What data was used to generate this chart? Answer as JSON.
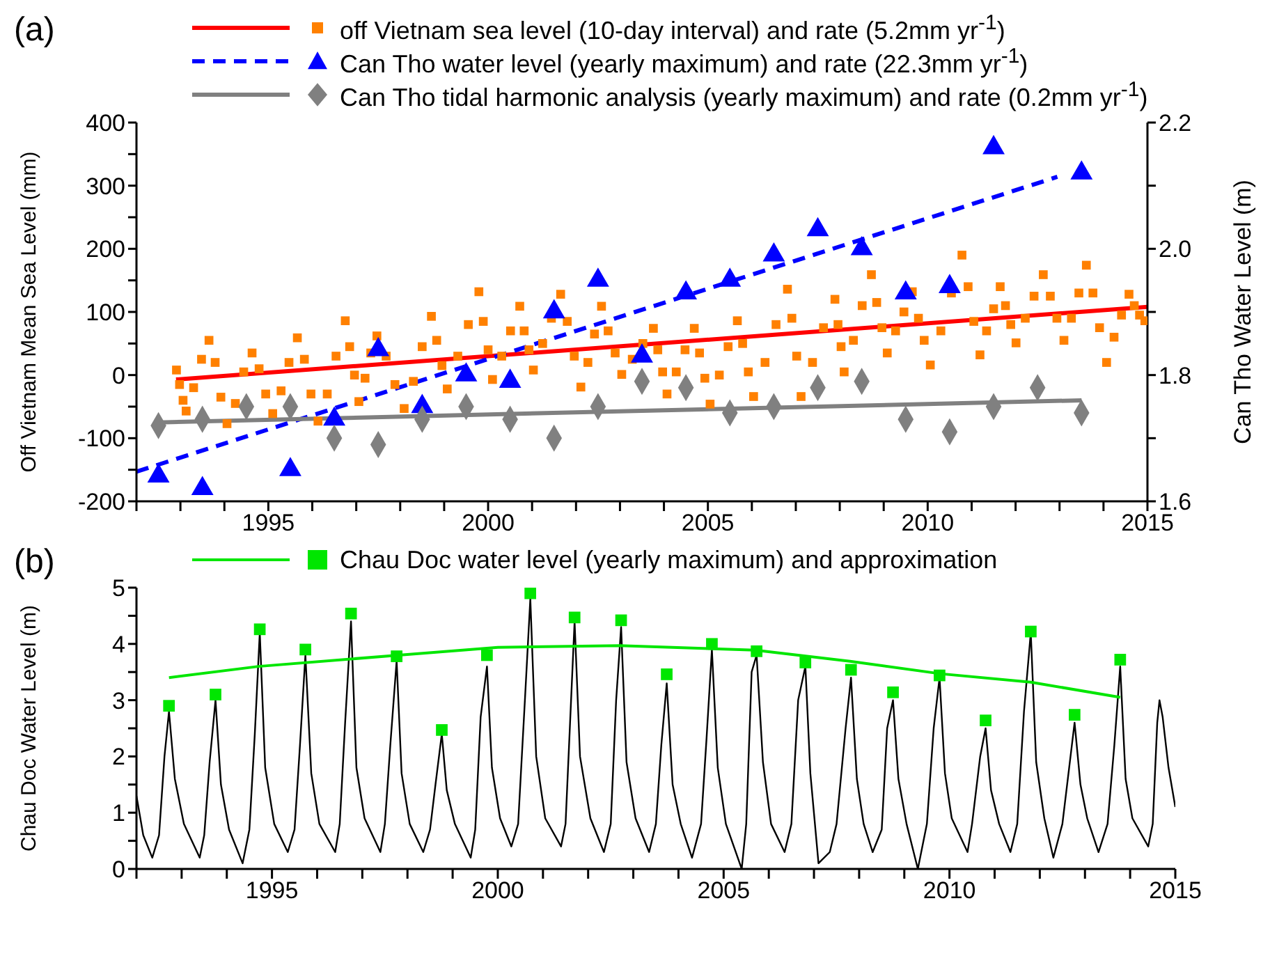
{
  "chart_data": [
    {
      "type": "scatter",
      "title": "(a)",
      "ylabel": "Off Vietnam Mean Sea Level (mm)",
      "y2label": "Can Tho Water Level (m)",
      "legend": "top",
      "grid": false,
      "xlim": [
        1992,
        2015
      ],
      "xticks": [
        {
          "value": 1992,
          "label": null
        },
        {
          "value": 1993,
          "label": null
        },
        {
          "value": 1994,
          "label": null
        },
        1995,
        {
          "value": 1996,
          "label": null
        },
        {
          "value": 1997,
          "label": null
        },
        {
          "value": 1998,
          "label": null
        },
        {
          "value": 1999,
          "label": null
        },
        2000,
        {
          "value": 2001,
          "label": null
        },
        {
          "value": 2002,
          "label": null
        },
        {
          "value": 2003,
          "label": null
        },
        {
          "value": 2004,
          "label": null
        },
        2005,
        {
          "value": 2006,
          "label": null
        },
        {
          "value": 2007,
          "label": null
        },
        {
          "value": 2008,
          "label": null
        },
        {
          "value": 2009,
          "label": null
        },
        2010,
        {
          "value": 2011,
          "label": null
        },
        {
          "value": 2012,
          "label": null
        },
        {
          "value": 2013,
          "label": null
        },
        {
          "value": 2014,
          "label": null
        },
        2015
      ],
      "ylim": [
        -200,
        400
      ],
      "yticks": [
        -200,
        {
          "value": -150,
          "label": null
        },
        -100,
        {
          "value": -50,
          "label": null
        },
        0,
        {
          "value": 50,
          "label": null
        },
        100,
        {
          "value": 150,
          "label": null
        },
        200,
        {
          "value": 250,
          "label": null
        },
        300,
        {
          "value": 350,
          "label": null
        },
        400
      ],
      "y2lim": [
        1.6,
        2.2
      ],
      "y2ticks": [
        1.6,
        {
          "value": 1.7,
          "label": null
        },
        1.8,
        {
          "value": 1.9,
          "label": null
        },
        {
          "value": 2,
          "label": "2.0"
        },
        {
          "value": 2.1,
          "label": null
        },
        2.2
      ],
      "series": [
        {
          "name": "off Vietnam sea level (10-day interval) and rate (5.2mm yr$^{-1}$)",
          "marker": "square",
          "color": "#ff8000",
          "x": [
            1992.91,
            1992.98,
            1993.06,
            1993.13,
            1993.3,
            1993.48,
            1993.65,
            1993.79,
            1993.92,
            1994.06,
            1994.25,
            1994.44,
            1994.63,
            1994.79,
            1994.94,
            1995.1,
            1995.29,
            1995.47,
            1995.66,
            1995.82,
            1995.97,
            1996.13,
            1996.34,
            1996.54,
            1996.75,
            1996.85,
            1996.96,
            1997.06,
            1997.2,
            1997.33,
            1997.47,
            1997.68,
            1997.88,
            1998.09,
            1998.3,
            1998.5,
            1998.71,
            1998.83,
            1998.95,
            1999.07,
            1999.31,
            1999.55,
            1999.79,
            1999.89,
            2000.0,
            2000.1,
            2000.31,
            2000.51,
            2000.72,
            2000.82,
            2000.93,
            2001.03,
            2001.24,
            2001.44,
            2001.65,
            2001.8,
            2001.96,
            2002.11,
            2002.27,
            2002.42,
            2002.58,
            2002.73,
            2002.89,
            2003.04,
            2003.28,
            2003.52,
            2003.76,
            2003.86,
            2003.97,
            2004.07,
            2004.28,
            2004.48,
            2004.69,
            2004.81,
            2004.93,
            2005.05,
            2005.26,
            2005.46,
            2005.67,
            2005.79,
            2005.92,
            2006.04,
            2006.3,
            2006.55,
            2006.81,
            2006.91,
            2007.02,
            2007.12,
            2007.38,
            2007.63,
            2007.89,
            2007.96,
            2008.03,
            2008.1,
            2008.31,
            2008.51,
            2008.72,
            2008.84,
            2008.96,
            2009.08,
            2009.27,
            2009.46,
            2009.65,
            2009.79,
            2009.92,
            2010.06,
            2010.3,
            2010.54,
            2010.78,
            2010.92,
            2011.05,
            2011.19,
            2011.34,
            2011.5,
            2011.65,
            2011.77,
            2011.89,
            2012.01,
            2012.22,
            2012.42,
            2012.63,
            2012.79,
            2012.94,
            2013.1,
            2013.27,
            2013.44,
            2013.61,
            2013.76,
            2013.91,
            2014.07,
            2014.24,
            2014.41,
            2014.58,
            2014.7,
            2014.82,
            2014.94
          ],
          "values": [
            8,
            -15,
            -40,
            -57,
            -20,
            25,
            55,
            20,
            -35,
            -77,
            -45,
            5,
            35,
            10,
            -30,
            -61,
            -25,
            20,
            59,
            25,
            -30,
            -73,
            -30,
            30,
            86,
            45,
            0,
            -42,
            -5,
            35,
            62,
            30,
            -15,
            -53,
            -10,
            45,
            93,
            55,
            15,
            -22,
            30,
            80,
            132,
            85,
            40,
            -7,
            30,
            70,
            109,
            70,
            40,
            8,
            50,
            90,
            128,
            85,
            30,
            -19,
            20,
            65,
            109,
            70,
            35,
            1,
            25,
            50,
            74,
            40,
            5,
            -30,
            5,
            40,
            74,
            35,
            -5,
            -46,
            0,
            45,
            86,
            50,
            5,
            -34,
            20,
            80,
            136,
            90,
            30,
            -34,
            20,
            75,
            120,
            80,
            45,
            5,
            55,
            110,
            159,
            115,
            75,
            35,
            70,
            100,
            132,
            90,
            55,
            16,
            70,
            130,
            190,
            140,
            85,
            32,
            70,
            105,
            140,
            110,
            80,
            51,
            90,
            125,
            159,
            125,
            90,
            55,
            90,
            130,
            174,
            130,
            75,
            20,
            60,
            95,
            128,
            110,
            95,
            86
          ]
        },
        {
          "type": "line",
          "color": "#ff0000",
          "x": [
            1992.9,
            2015
          ],
          "values": [
            -7,
            108
          ]
        },
        {
          "name": "Can Tho water level (yearly maximum) and rate (22.3mm yr$^{-1}$)",
          "marker": "triangle",
          "color": "#0000ff",
          "axis": "y2",
          "x": [
            1992.5,
            1993.5,
            1995.5,
            1996.5,
            1997.5,
            1998.5,
            1999.5,
            2000.5,
            2001.5,
            2002.5,
            2003.5,
            2004.5,
            2005.5,
            2006.5,
            2007.5,
            2008.5,
            2009.5,
            2010.5,
            2011.5,
            2013.5
          ],
          "values": [
            1.64,
            1.62,
            1.65,
            1.73,
            1.84,
            1.75,
            1.8,
            1.79,
            1.9,
            1.95,
            1.83,
            1.93,
            1.95,
            1.99,
            2.03,
            2.0,
            1.93,
            1.94,
            2.16,
            2.12
          ]
        },
        {
          "type": "line",
          "color": "#0000ff",
          "axis": "y2",
          "line_style": "dashed",
          "x": [
            1992,
            2012.95
          ],
          "values": [
            1.647,
            2.114
          ]
        },
        {
          "name": "Can Tho tidal harmonic analysis (yearly maximum) and rate (0.2mm yr$^{-1}$)",
          "marker": "diamond",
          "color": "#808080",
          "axis": "y2",
          "x": [
            1992.5,
            1993.5,
            1994.5,
            1995.5,
            1996.5,
            1997.5,
            1998.5,
            1999.5,
            2000.5,
            2001.5,
            2002.5,
            2003.5,
            2004.5,
            2005.5,
            2006.5,
            2007.5,
            2008.5,
            2009.5,
            2010.5,
            2011.5,
            2012.5,
            2013.5
          ],
          "values": [
            1.72,
            1.73,
            1.75,
            1.75,
            1.7,
            1.69,
            1.73,
            1.75,
            1.73,
            1.7,
            1.75,
            1.79,
            1.78,
            1.74,
            1.75,
            1.78,
            1.79,
            1.73,
            1.71,
            1.75,
            1.78,
            1.74
          ]
        },
        {
          "type": "line",
          "color": "#808080",
          "axis": "y2",
          "x": [
            1992.5,
            2013.5
          ],
          "values": [
            1.725,
            1.76
          ]
        }
      ]
    },
    {
      "type": "line",
      "title": "(b)",
      "ylabel": "Chau Doc Water Level (m)",
      "legend": "top",
      "grid": false,
      "xlim": [
        1992,
        2015
      ],
      "xticks": [
        {
          "value": 1992,
          "label": null
        },
        {
          "value": 1993,
          "label": null
        },
        {
          "value": 1994,
          "label": null
        },
        1995,
        {
          "value": 1996,
          "label": null
        },
        {
          "value": 1997,
          "label": null
        },
        {
          "value": 1998,
          "label": null
        },
        {
          "value": 1999,
          "label": null
        },
        2000,
        {
          "value": 2001,
          "label": null
        },
        {
          "value": 2002,
          "label": null
        },
        {
          "value": 2003,
          "label": null
        },
        {
          "value": 2004,
          "label": null
        },
        2005,
        {
          "value": 2006,
          "label": null
        },
        {
          "value": 2007,
          "label": null
        },
        {
          "value": 2008,
          "label": null
        },
        {
          "value": 2009,
          "label": null
        },
        2010,
        {
          "value": 2011,
          "label": null
        },
        {
          "value": 2012,
          "label": null
        },
        {
          "value": 2013,
          "label": null
        },
        {
          "value": 2014,
          "label": null
        },
        2015
      ],
      "ylim": [
        0,
        5
      ],
      "yticks": [
        0,
        {
          "value": 0.5,
          "label": null
        },
        1,
        {
          "value": 1.5,
          "label": null
        },
        2,
        {
          "value": 2.5,
          "label": null
        },
        3,
        {
          "value": 3.5,
          "label": null
        },
        4,
        {
          "value": 4.5,
          "label": null
        },
        5
      ],
      "series": [
        {
          "color": "#000000",
          "x": [
            1992.0,
            1992.15,
            1992.35,
            1992.5,
            1992.62,
            1992.72,
            1992.85,
            1993.05,
            1993.4,
            1993.5,
            1993.62,
            1993.75,
            1993.87,
            1994.05,
            1994.35,
            1994.5,
            1994.62,
            1994.73,
            1994.85,
            1995.05,
            1995.35,
            1995.5,
            1995.62,
            1995.74,
            1995.87,
            1996.05,
            1996.4,
            1996.5,
            1996.62,
            1996.75,
            1996.87,
            1997.05,
            1997.4,
            1997.5,
            1997.62,
            1997.76,
            1997.87,
            1998.05,
            1998.35,
            1998.5,
            1998.62,
            1998.76,
            1998.87,
            1999.05,
            1999.4,
            1999.5,
            1999.62,
            1999.76,
            1999.87,
            2000.05,
            2000.3,
            2000.45,
            2000.6,
            2000.72,
            2000.85,
            2001.05,
            2001.4,
            2001.5,
            2001.6,
            2001.7,
            2001.82,
            2002.05,
            2002.35,
            2002.5,
            2002.62,
            2002.73,
            2002.85,
            2003.05,
            2003.35,
            2003.5,
            2003.62,
            2003.74,
            2003.87,
            2004.05,
            2004.3,
            2004.5,
            2004.62,
            2004.74,
            2004.87,
            2005.05,
            2005.4,
            2005.5,
            2005.62,
            2005.73,
            2005.87,
            2006.05,
            2006.35,
            2006.5,
            2006.65,
            2006.81,
            2006.92,
            2007.1,
            2007.35,
            2007.5,
            2007.7,
            2007.82,
            2007.95,
            2008.1,
            2008.3,
            2008.5,
            2008.62,
            2008.75,
            2008.87,
            2009.05,
            2009.3,
            2009.5,
            2009.65,
            2009.78,
            2009.9,
            2010.05,
            2010.4,
            2010.5,
            2010.68,
            2010.8,
            2010.92,
            2011.1,
            2011.35,
            2011.5,
            2011.65,
            2011.8,
            2011.92,
            2012.1,
            2012.3,
            2012.5,
            2012.68,
            2012.77,
            2012.9,
            2013.05,
            2013.3,
            2013.5,
            2013.65,
            2013.78,
            2013.9,
            2014.05,
            2014.4,
            2014.5,
            2014.6,
            2014.65,
            2014.72,
            2014.85,
            2015.0
          ],
          "values": [
            1.3,
            0.6,
            0.2,
            0.6,
            2.0,
            2.8,
            1.6,
            0.8,
            0.2,
            0.6,
            1.9,
            3.0,
            1.5,
            0.7,
            0.1,
            0.7,
            2.4,
            4.2,
            1.8,
            0.8,
            0.3,
            0.7,
            2.2,
            3.8,
            1.7,
            0.8,
            0.3,
            0.8,
            2.6,
            4.4,
            1.8,
            0.9,
            0.3,
            0.8,
            2.2,
            3.7,
            1.7,
            0.8,
            0.3,
            0.7,
            1.5,
            2.4,
            1.4,
            0.8,
            0.2,
            0.7,
            2.7,
            3.6,
            1.8,
            0.9,
            0.4,
            0.8,
            3.0,
            4.8,
            2.0,
            0.9,
            0.4,
            0.8,
            2.6,
            4.4,
            2.0,
            0.9,
            0.3,
            0.8,
            3.0,
            4.3,
            1.9,
            0.9,
            0.3,
            0.8,
            2.2,
            3.3,
            1.5,
            0.8,
            0.2,
            0.8,
            2.3,
            3.9,
            1.8,
            0.8,
            0.0,
            0.8,
            3.5,
            3.8,
            1.9,
            0.8,
            0.3,
            0.8,
            3.0,
            3.6,
            1.7,
            0.1,
            0.3,
            0.8,
            2.5,
            3.4,
            1.6,
            0.8,
            0.3,
            0.7,
            2.5,
            3.0,
            1.6,
            0.8,
            0.0,
            0.8,
            2.5,
            3.4,
            1.7,
            0.9,
            0.3,
            0.8,
            2.0,
            2.5,
            1.4,
            0.8,
            0.3,
            0.8,
            2.8,
            4.2,
            1.9,
            0.9,
            0.2,
            0.8,
            2.0,
            2.6,
            1.5,
            0.9,
            0.3,
            0.8,
            2.2,
            3.6,
            1.6,
            0.9,
            0.4,
            0.8,
            2.6,
            3.0,
            2.7,
            1.8,
            1.1
          ]
        },
        {
          "name": "Chau Doc water level (yearly maximum) and approximation",
          "type": "scatter",
          "marker": "square",
          "color": "#00e600",
          "x": [
            1992.72,
            1993.75,
            1994.73,
            1995.74,
            1996.75,
            1997.76,
            1998.76,
            1999.76,
            2000.72,
            2001.7,
            2002.73,
            2003.74,
            2004.74,
            2005.73,
            2006.81,
            2007.82,
            2008.75,
            2009.78,
            2010.8,
            2011.8,
            2012.77,
            2013.78
          ],
          "values": [
            2.9,
            3.1,
            4.26,
            3.9,
            4.54,
            3.78,
            2.47,
            3.8,
            4.9,
            4.47,
            4.42,
            3.46,
            4.0,
            3.87,
            3.67,
            3.54,
            3.14,
            3.44,
            2.64,
            4.22,
            2.74,
            3.72
          ]
        },
        {
          "color": "#00e600",
          "x": [
            1992.72,
            1994.7,
            1997.8,
            2000,
            2002.7,
            2005.7,
            2007.8,
            2009.8,
            2011.8,
            2013.78
          ],
          "values": [
            3.4,
            3.6,
            3.8,
            3.94,
            3.97,
            3.89,
            3.69,
            3.47,
            3.32,
            3.05
          ]
        }
      ]
    }
  ]
}
